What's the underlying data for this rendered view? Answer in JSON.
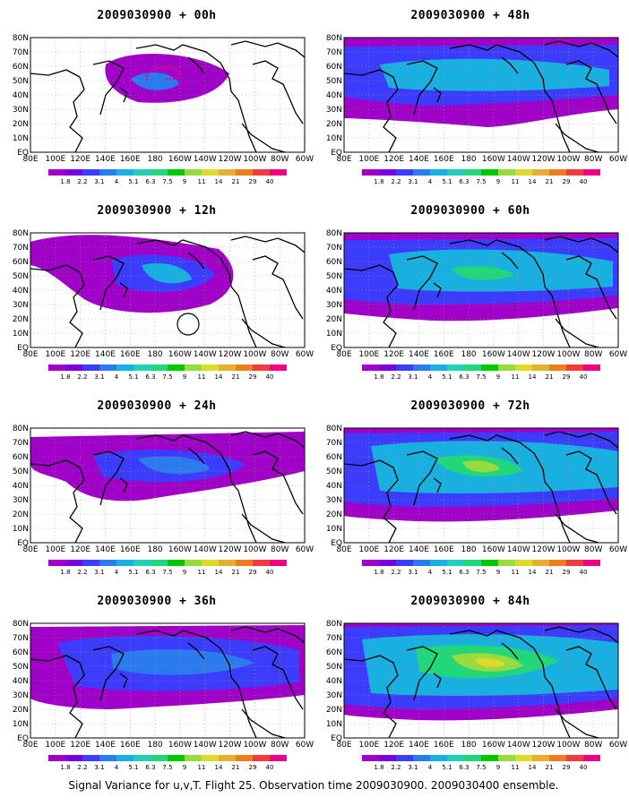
{
  "panels": [
    {
      "title": "2009030900 + 00h",
      "lead": 0
    },
    {
      "title": "2009030900 + 48h",
      "lead": 48
    },
    {
      "title": "2009030900 + 12h",
      "lead": 12
    },
    {
      "title": "2009030900 + 60h",
      "lead": 60
    },
    {
      "title": "2009030900 + 24h",
      "lead": 24
    },
    {
      "title": "2009030900 + 72h",
      "lead": 72
    },
    {
      "title": "2009030900 + 36h",
      "lead": 36
    },
    {
      "title": "2009030900 + 84h",
      "lead": 84
    }
  ],
  "map_axes": {
    "lon_labels": [
      "80E",
      "100E",
      "120E",
      "140E",
      "160E",
      "180",
      "160W",
      "140W",
      "120W",
      "100W",
      "80W",
      "60W"
    ],
    "lat_labels": [
      "EQ",
      "10N",
      "20N",
      "30N",
      "40N",
      "50N",
      "60N",
      "70N",
      "80N"
    ]
  },
  "colorbar": {
    "labels": [
      "1.8",
      "2.2",
      "3.1",
      "4",
      "5.1",
      "6.3",
      "7.5",
      "9",
      "11",
      "14",
      "21",
      "29",
      "40"
    ],
    "colors": [
      "#a000c8",
      "#7a00e0",
      "#3c3cff",
      "#2a7af0",
      "#18b0e0",
      "#20d0b8",
      "#20d87a",
      "#00c800",
      "#96dc3c",
      "#dcdc28",
      "#e6af2d",
      "#ef7d1e",
      "#f03c3c",
      "#f00082"
    ]
  },
  "footer": "Signal Variance for u,v,T. Flight 25. Observation time 2009030900. 2009030400 ensemble."
}
